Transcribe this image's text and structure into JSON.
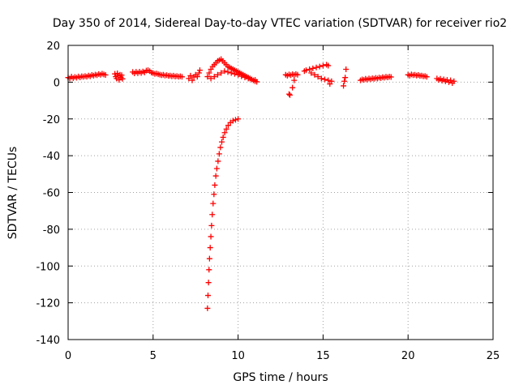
{
  "chart_data": {
    "type": "scatter",
    "title": "Day 350 of 2014, Sidereal Day-to-day VTEC variation (SDTVAR) for receiver rio2",
    "xlabel": "GPS time / hours",
    "ylabel": "SDTVAR / TECUs",
    "xlim": [
      0,
      25
    ],
    "ylim": [
      -140,
      20
    ],
    "xticks": [
      "0",
      "5",
      "10",
      "15",
      "20",
      "25"
    ],
    "yticks": [
      "20",
      "0",
      "-20",
      "-40",
      "-60",
      "-80",
      "-100",
      "-120",
      "-140"
    ],
    "grid": true,
    "marker": "plus",
    "color": "#ff0000",
    "series": [
      {
        "points": [
          [
            0.0,
            2.5
          ],
          [
            0.1,
            2.0
          ],
          [
            0.2,
            3.0
          ],
          [
            0.3,
            2.2
          ],
          [
            0.4,
            2.8
          ],
          [
            0.5,
            2.4
          ],
          [
            0.6,
            3.1
          ],
          [
            0.7,
            2.6
          ],
          [
            0.8,
            3.2
          ],
          [
            0.9,
            2.9
          ],
          [
            1.0,
            3.3
          ],
          [
            1.1,
            3.0
          ],
          [
            1.2,
            3.6
          ],
          [
            1.3,
            3.2
          ],
          [
            1.4,
            3.9
          ],
          [
            1.5,
            3.5
          ],
          [
            1.6,
            4.1
          ],
          [
            1.7,
            3.8
          ],
          [
            1.8,
            4.4
          ],
          [
            1.9,
            4.0
          ],
          [
            2.0,
            4.6
          ],
          [
            2.1,
            4.2
          ],
          [
            2.2,
            3.9
          ],
          [
            2.75,
            4.5
          ],
          [
            2.8,
            3.0
          ],
          [
            2.85,
            2.0
          ],
          [
            2.9,
            4.8
          ],
          [
            2.95,
            3.5
          ],
          [
            3.0,
            1.2
          ],
          [
            3.05,
            4.0
          ],
          [
            3.1,
            2.6
          ],
          [
            3.15,
            3.8
          ],
          [
            3.2,
            1.8
          ],
          [
            3.8,
            5.5
          ],
          [
            3.9,
            4.8
          ],
          [
            4.0,
            5.6
          ],
          [
            4.1,
            4.9
          ],
          [
            4.2,
            5.7
          ],
          [
            4.3,
            5.0
          ],
          [
            4.4,
            5.8
          ],
          [
            4.5,
            5.3
          ],
          [
            4.6,
            6.3
          ],
          [
            4.7,
            6.5
          ],
          [
            4.8,
            6.0
          ],
          [
            4.9,
            5.2
          ],
          [
            5.0,
            4.9
          ],
          [
            5.1,
            4.5
          ],
          [
            5.2,
            4.7
          ],
          [
            5.3,
            4.3
          ],
          [
            5.4,
            4.1
          ],
          [
            5.5,
            3.8
          ],
          [
            5.6,
            4.0
          ],
          [
            5.7,
            3.6
          ],
          [
            5.8,
            3.8
          ],
          [
            5.9,
            3.4
          ],
          [
            6.0,
            3.6
          ],
          [
            6.1,
            3.2
          ],
          [
            6.2,
            3.5
          ],
          [
            6.3,
            3.1
          ],
          [
            6.4,
            3.3
          ],
          [
            6.5,
            3.0
          ],
          [
            6.6,
            3.2
          ],
          [
            6.7,
            2.9
          ],
          [
            7.1,
            2.0
          ],
          [
            7.2,
            3.5
          ],
          [
            7.3,
            1.0
          ],
          [
            7.4,
            2.8
          ],
          [
            7.5,
            4.0
          ],
          [
            7.6,
            3.0
          ],
          [
            7.7,
            5.0
          ],
          [
            7.75,
            6.5
          ],
          [
            8.2,
            3.0
          ],
          [
            8.3,
            5.0
          ],
          [
            8.4,
            7.0
          ],
          [
            8.5,
            8.5
          ],
          [
            8.6,
            9.5
          ],
          [
            8.7,
            10.5
          ],
          [
            8.8,
            11.5
          ],
          [
            8.9,
            12.0
          ],
          [
            9.0,
            12.5
          ],
          [
            9.1,
            11.5
          ],
          [
            9.2,
            10.5
          ],
          [
            9.3,
            9.5
          ],
          [
            9.4,
            8.5
          ],
          [
            9.5,
            8.0
          ],
          [
            9.6,
            7.5
          ],
          [
            9.7,
            7.0
          ],
          [
            9.8,
            6.5
          ],
          [
            9.9,
            6.0
          ],
          [
            10.0,
            5.5
          ],
          [
            10.1,
            5.0
          ],
          [
            10.2,
            4.5
          ],
          [
            10.3,
            4.0
          ],
          [
            10.4,
            3.5
          ],
          [
            10.5,
            3.0
          ],
          [
            10.6,
            2.5
          ],
          [
            10.7,
            2.0
          ],
          [
            10.8,
            1.5
          ],
          [
            10.9,
            1.0
          ],
          [
            11.0,
            0.5
          ],
          [
            11.1,
            0.2
          ],
          [
            8.4,
            2.0
          ],
          [
            8.6,
            3.0
          ],
          [
            8.8,
            4.0
          ],
          [
            9.0,
            5.0
          ],
          [
            9.2,
            6.0
          ],
          [
            9.4,
            5.5
          ],
          [
            9.6,
            5.0
          ],
          [
            9.8,
            4.5
          ],
          [
            10.0,
            4.0
          ],
          [
            10.2,
            3.2
          ],
          [
            10.4,
            2.6
          ],
          [
            10.6,
            2.0
          ],
          [
            10.8,
            1.5
          ],
          [
            11.0,
            1.2
          ],
          [
            12.8,
            4.0
          ],
          [
            12.9,
            3.5
          ],
          [
            13.0,
            4.2
          ],
          [
            13.1,
            3.8
          ],
          [
            13.2,
            4.3
          ],
          [
            13.3,
            3.9
          ],
          [
            13.4,
            4.4
          ],
          [
            13.5,
            4.0
          ],
          [
            13.0,
            -6.5
          ],
          [
            13.05,
            -7.0
          ],
          [
            13.2,
            -3.0
          ],
          [
            13.3,
            1.0
          ],
          [
            13.9,
            6.0
          ],
          [
            14.0,
            6.5
          ],
          [
            14.2,
            7.0
          ],
          [
            14.4,
            7.5
          ],
          [
            14.6,
            8.0
          ],
          [
            14.8,
            8.5
          ],
          [
            15.0,
            9.0
          ],
          [
            15.2,
            9.5
          ],
          [
            15.3,
            9.0
          ],
          [
            14.3,
            5.0
          ],
          [
            14.5,
            4.0
          ],
          [
            14.7,
            3.0
          ],
          [
            14.9,
            2.0
          ],
          [
            15.1,
            1.5
          ],
          [
            15.3,
            1.0
          ],
          [
            15.5,
            0.5
          ],
          [
            15.4,
            -1.0
          ],
          [
            16.2,
            -2.0
          ],
          [
            16.25,
            0.5
          ],
          [
            16.3,
            2.5
          ],
          [
            16.35,
            7.0
          ],
          [
            17.2,
            1.0
          ],
          [
            17.3,
            1.5
          ],
          [
            17.4,
            1.2
          ],
          [
            17.5,
            1.8
          ],
          [
            17.6,
            1.4
          ],
          [
            17.7,
            2.0
          ],
          [
            17.8,
            1.6
          ],
          [
            17.9,
            2.1
          ],
          [
            18.0,
            1.8
          ],
          [
            18.1,
            2.3
          ],
          [
            18.2,
            2.0
          ],
          [
            18.3,
            2.5
          ],
          [
            18.4,
            2.2
          ],
          [
            18.5,
            2.7
          ],
          [
            18.6,
            2.4
          ],
          [
            18.7,
            2.9
          ],
          [
            18.8,
            2.6
          ],
          [
            18.9,
            3.0
          ],
          [
            19.0,
            2.8
          ],
          [
            20.0,
            4.0
          ],
          [
            20.1,
            3.5
          ],
          [
            20.2,
            4.2
          ],
          [
            20.3,
            3.8
          ],
          [
            20.4,
            4.0
          ],
          [
            20.5,
            3.6
          ],
          [
            20.6,
            3.9
          ],
          [
            20.7,
            3.4
          ],
          [
            20.8,
            3.6
          ],
          [
            20.9,
            3.2
          ],
          [
            21.0,
            3.3
          ],
          [
            21.1,
            2.9
          ],
          [
            21.7,
            2.0
          ],
          [
            21.8,
            1.2
          ],
          [
            21.9,
            1.8
          ],
          [
            22.0,
            0.8
          ],
          [
            22.1,
            1.5
          ],
          [
            22.2,
            0.5
          ],
          [
            22.3,
            1.2
          ],
          [
            22.4,
            0.0
          ],
          [
            22.5,
            1.0
          ],
          [
            22.6,
            -0.5
          ],
          [
            22.7,
            0.5
          ],
          [
            8.2,
            -123.0
          ],
          [
            8.23,
            -116.0
          ],
          [
            8.26,
            -109.0
          ],
          [
            8.29,
            -102.0
          ],
          [
            8.32,
            -96.0
          ],
          [
            8.36,
            -90.0
          ],
          [
            8.4,
            -84.0
          ],
          [
            8.44,
            -78.0
          ],
          [
            8.48,
            -72.0
          ],
          [
            8.53,
            -66.0
          ],
          [
            8.58,
            -61.0
          ],
          [
            8.63,
            -56.0
          ],
          [
            8.69,
            -51.0
          ],
          [
            8.75,
            -47.0
          ],
          [
            8.82,
            -43.0
          ],
          [
            8.89,
            -39.0
          ],
          [
            8.96,
            -35.5
          ],
          [
            9.04,
            -32.5
          ],
          [
            9.12,
            -30.0
          ],
          [
            9.21,
            -27.5
          ],
          [
            9.31,
            -25.5
          ],
          [
            9.42,
            -23.5
          ],
          [
            9.55,
            -22.0
          ],
          [
            9.7,
            -21.0
          ],
          [
            9.85,
            -20.5
          ],
          [
            10.0,
            -20.0
          ]
        ]
      }
    ]
  }
}
